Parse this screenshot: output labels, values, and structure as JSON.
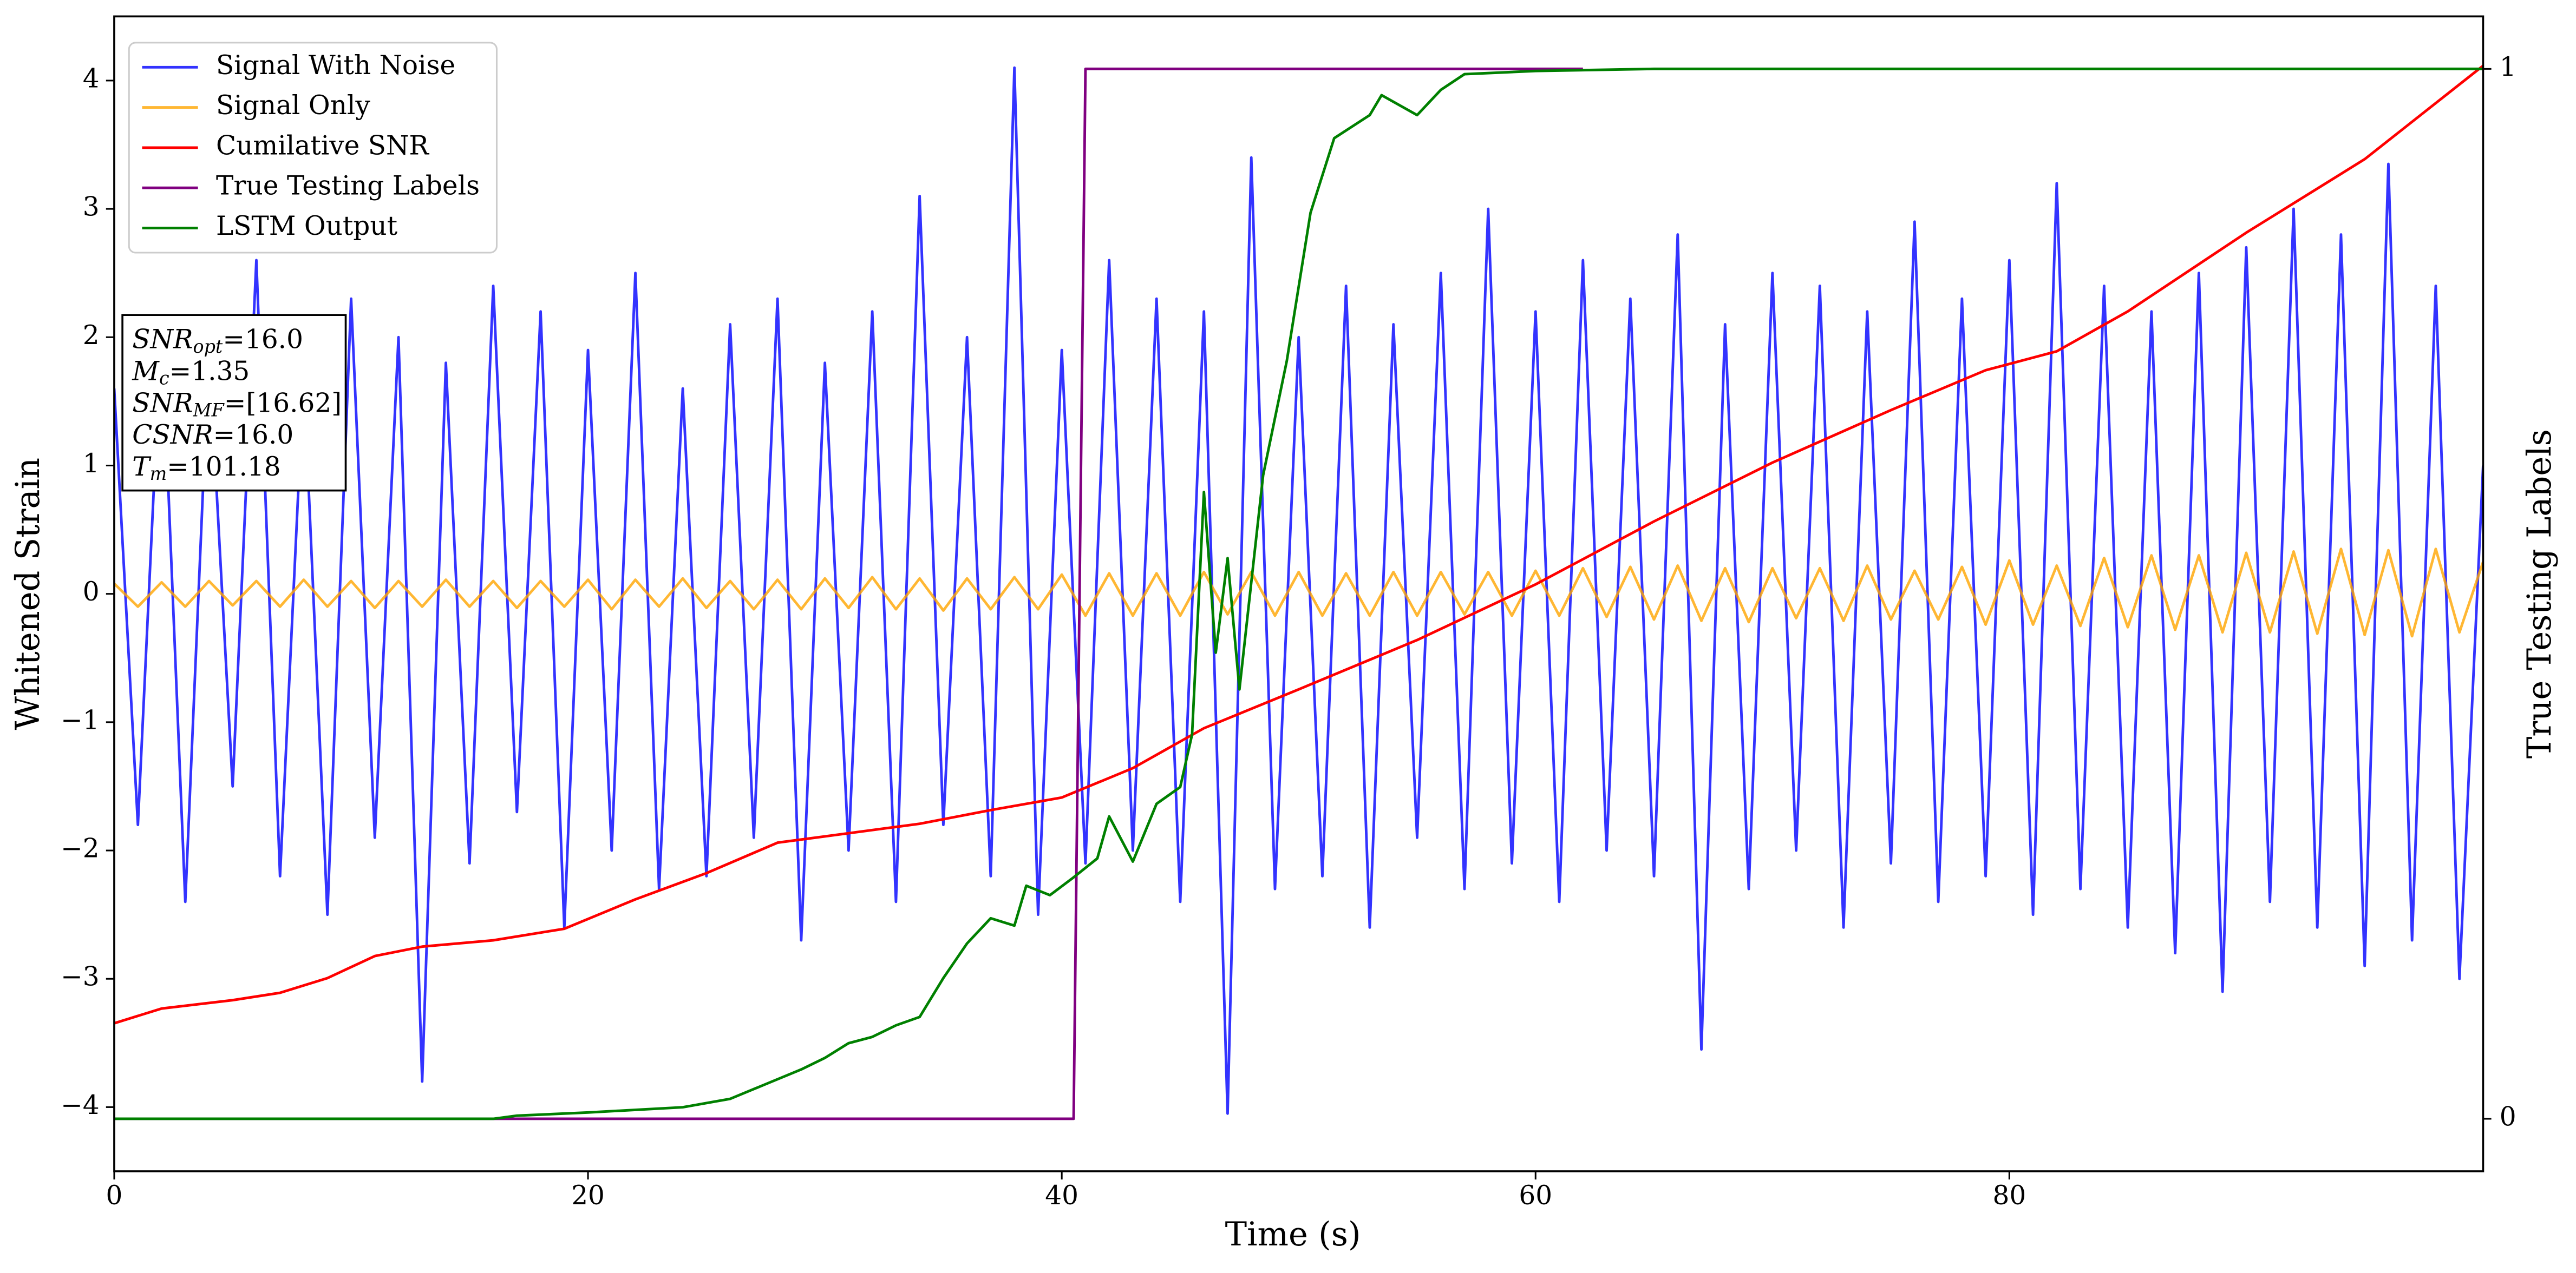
{
  "chart_data": {
    "type": "line",
    "xlabel": "Time (s)",
    "ylabel": "Whitened Strain",
    "y2label": "True Testing Labels",
    "xlim": [
      0,
      100
    ],
    "ylim": [
      -4.5,
      4.5
    ],
    "y2lim": [
      -0.05,
      1.05
    ],
    "xticks": [
      0,
      20,
      40,
      60,
      80
    ],
    "yticks": [
      {
        "value": -4,
        "label": "−4"
      },
      {
        "value": -3,
        "label": "−3"
      },
      {
        "value": -2,
        "label": "−2"
      },
      {
        "value": -1,
        "label": "−1"
      },
      0,
      1,
      2,
      3,
      4
    ],
    "y2ticks": [
      0,
      1
    ],
    "grid": false,
    "legend": "upper left",
    "annotation": [
      {
        "symbol": "SNR",
        "subscript": "opt",
        "text": "=16.0"
      },
      {
        "symbol": "M",
        "subscript": "c",
        "text": "=1.35"
      },
      {
        "symbol": "SNR",
        "subscript": "MF",
        "text": "=[16.62]"
      },
      {
        "symbol": "CSNR",
        "text": "=16.0"
      },
      {
        "symbol": "T",
        "subscript": "m",
        "text": "=101.18"
      }
    ],
    "series": [
      {
        "name": "Signal With Noise",
        "color": "#0000ff",
        "opacity": 0.8,
        "x": [
          0,
          1,
          2,
          3,
          4,
          5,
          6,
          7,
          8,
          9,
          10,
          11,
          12,
          13,
          14,
          15,
          16,
          17,
          18,
          19,
          20,
          21,
          22,
          23,
          24,
          25,
          26,
          27,
          28,
          29,
          30,
          31,
          32,
          33,
          34,
          35,
          36,
          37,
          38,
          39,
          40,
          41,
          42,
          43,
          44,
          45,
          46,
          47,
          48,
          49,
          50,
          51,
          52,
          53,
          54,
          55,
          56,
          57,
          58,
          59,
          60,
          61,
          62,
          63,
          64,
          65,
          66,
          67,
          68,
          69,
          70,
          71,
          72,
          73,
          74,
          75,
          76,
          77,
          78,
          79,
          80,
          81,
          82,
          83,
          84,
          85,
          86,
          87,
          88,
          89,
          90,
          91,
          92,
          93,
          94,
          95,
          96,
          97,
          98,
          99,
          100
        ],
        "values": [
          1.6,
          -1.8,
          2.1,
          -2.4,
          1.9,
          -1.5,
          2.6,
          -2.2,
          1.7,
          -2.5,
          2.3,
          -1.9,
          2.0,
          -3.8,
          1.8,
          -2.1,
          2.4,
          -1.7,
          2.2,
          -2.6,
          1.9,
          -2.0,
          2.5,
          -2.3,
          1.6,
          -2.2,
          2.1,
          -1.9,
          2.3,
          -2.7,
          1.8,
          -2.0,
          2.2,
          -2.4,
          3.1,
          -1.8,
          2.0,
          -2.2,
          4.1,
          -2.5,
          1.9,
          -2.1,
          2.6,
          -2.0,
          2.3,
          -2.4,
          2.2,
          -4.05,
          3.4,
          -2.3,
          2.0,
          -2.2,
          2.4,
          -2.6,
          2.1,
          -1.9,
          2.5,
          -2.3,
          3.0,
          -2.1,
          2.2,
          -2.4,
          2.6,
          -2.0,
          2.3,
          -2.2,
          2.8,
          -3.55,
          2.1,
          -2.3,
          2.5,
          -2.0,
          2.4,
          -2.6,
          2.2,
          -2.1,
          2.9,
          -2.4,
          2.3,
          -2.2,
          2.6,
          -2.5,
          3.2,
          -2.3,
          2.4,
          -2.6,
          2.2,
          -2.8,
          2.5,
          -3.1,
          2.7,
          -2.4,
          3.0,
          -2.6,
          2.8,
          -2.9,
          3.35,
          -2.7,
          2.4,
          -3.0,
          1.0
        ]
      },
      {
        "name": "Signal Only",
        "color": "#ffa500",
        "opacity": 0.8,
        "x": [
          0,
          1,
          2,
          3,
          4,
          5,
          6,
          7,
          8,
          9,
          10,
          11,
          12,
          13,
          14,
          15,
          16,
          17,
          18,
          19,
          20,
          21,
          22,
          23,
          24,
          25,
          26,
          27,
          28,
          29,
          30,
          31,
          32,
          33,
          34,
          35,
          36,
          37,
          38,
          39,
          40,
          41,
          42,
          43,
          44,
          45,
          46,
          47,
          48,
          49,
          50,
          51,
          52,
          53,
          54,
          55,
          56,
          57,
          58,
          59,
          60,
          61,
          62,
          63,
          64,
          65,
          66,
          67,
          68,
          69,
          70,
          71,
          72,
          73,
          74,
          75,
          76,
          77,
          78,
          79,
          80,
          81,
          82,
          83,
          84,
          85,
          86,
          87,
          88,
          89,
          90,
          91,
          92,
          93,
          94,
          95,
          96,
          97,
          98,
          99,
          100
        ],
        "values": [
          0.08,
          -0.1,
          0.09,
          -0.1,
          0.1,
          -0.09,
          0.1,
          -0.1,
          0.11,
          -0.1,
          0.1,
          -0.11,
          0.1,
          -0.1,
          0.11,
          -0.1,
          0.1,
          -0.11,
          0.1,
          -0.1,
          0.11,
          -0.12,
          0.11,
          -0.1,
          0.12,
          -0.11,
          0.1,
          -0.12,
          0.11,
          -0.12,
          0.12,
          -0.11,
          0.13,
          -0.12,
          0.12,
          -0.13,
          0.12,
          -0.12,
          0.13,
          -0.12,
          0.15,
          -0.17,
          0.16,
          -0.17,
          0.16,
          -0.17,
          0.17,
          -0.16,
          0.17,
          -0.17,
          0.17,
          -0.17,
          0.16,
          -0.17,
          0.17,
          -0.17,
          0.17,
          -0.16,
          0.17,
          -0.17,
          0.18,
          -0.17,
          0.2,
          -0.18,
          0.21,
          -0.2,
          0.22,
          -0.21,
          0.2,
          -0.22,
          0.2,
          -0.19,
          0.2,
          -0.21,
          0.22,
          -0.2,
          0.18,
          -0.2,
          0.21,
          -0.24,
          0.26,
          -0.24,
          0.22,
          -0.25,
          0.28,
          -0.26,
          0.3,
          -0.28,
          0.3,
          -0.3,
          0.32,
          -0.3,
          0.33,
          -0.31,
          0.35,
          -0.32,
          0.34,
          -0.33,
          0.35,
          -0.3,
          0.25
        ]
      },
      {
        "name": "Cumilative SNR",
        "color": "#ff0000",
        "axis": "y2",
        "x": [
          0,
          2,
          5,
          7,
          9,
          11,
          13,
          16,
          19,
          22,
          25,
          28,
          31,
          34,
          37,
          40,
          43,
          46,
          50,
          55,
          60,
          65,
          70,
          75,
          79,
          82,
          85,
          90,
          95,
          100
        ],
        "values": [
          0.091,
          0.105,
          0.113,
          0.12,
          0.134,
          0.155,
          0.164,
          0.17,
          0.181,
          0.209,
          0.234,
          0.263,
          0.272,
          0.281,
          0.294,
          0.306,
          0.334,
          0.372,
          0.409,
          0.456,
          0.509,
          0.569,
          0.625,
          0.675,
          0.713,
          0.731,
          0.769,
          0.844,
          0.914,
          1.003
        ]
      },
      {
        "name": "True Testing Labels",
        "color": "#800080",
        "axis": "y2",
        "x": [
          0,
          40.5,
          41,
          62
        ],
        "values": [
          0,
          0,
          1,
          1
        ]
      },
      {
        "name": "LSTM Output",
        "color": "#008000",
        "axis": "y2",
        "x": [
          0,
          16,
          17,
          20,
          24,
          26,
          27.5,
          29,
          30,
          31,
          32,
          33,
          34,
          35,
          36,
          37,
          38,
          38.5,
          39.5,
          40.5,
          41.5,
          42,
          43,
          44,
          45,
          45.5,
          46,
          46.5,
          47,
          47.5,
          48.5,
          49.5,
          50.5,
          51.5,
          53,
          53.5,
          55,
          56,
          57,
          60,
          65,
          100
        ],
        "values": [
          0,
          0,
          0.003,
          0.006,
          0.011,
          0.019,
          0.033,
          0.047,
          0.058,
          0.072,
          0.078,
          0.089,
          0.097,
          0.134,
          0.167,
          0.191,
          0.184,
          0.222,
          0.213,
          0.23,
          0.248,
          0.288,
          0.245,
          0.3,
          0.316,
          0.366,
          0.597,
          0.444,
          0.534,
          0.409,
          0.613,
          0.722,
          0.863,
          0.934,
          0.956,
          0.975,
          0.956,
          0.98,
          0.995,
          0.998,
          1,
          1
        ]
      }
    ]
  }
}
